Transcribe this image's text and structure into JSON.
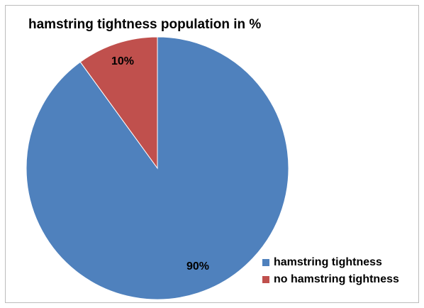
{
  "chart_data": {
    "type": "pie",
    "title": "hamstring tightness population  in %",
    "slices": [
      {
        "label": "hamstring tightness",
        "value": 90,
        "data_label": "90%",
        "color": "#4F81BD"
      },
      {
        "label": "no hamstring tightness",
        "value": 10,
        "data_label": "10%",
        "color": "#C0504D"
      }
    ],
    "start_angle_deg": 0,
    "direction": "clockwise",
    "legend_position": "bottom-right"
  }
}
